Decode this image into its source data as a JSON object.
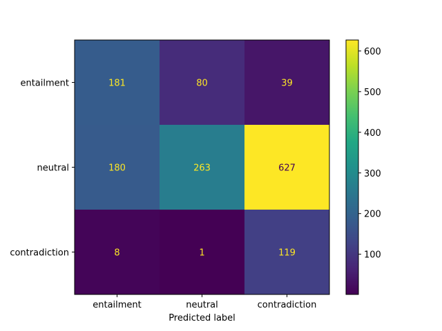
{
  "chart_data": {
    "type": "heatmap",
    "title": "",
    "xlabel": "Predicted label",
    "ylabel": "",
    "x_categories": [
      "entailment",
      "neutral",
      "contradiction"
    ],
    "y_categories": [
      "entailment",
      "neutral",
      "contradiction"
    ],
    "values": [
      [
        181,
        80,
        39
      ],
      [
        180,
        263,
        627
      ],
      [
        8,
        1,
        119
      ]
    ],
    "colormap": "viridis",
    "colorbar": {
      "range": [
        1,
        627
      ],
      "ticks": [
        100,
        200,
        300,
        400,
        500,
        600
      ],
      "tick_labels": [
        "100",
        "200",
        "300",
        "400",
        "500",
        "600"
      ]
    },
    "cell_text_colors": {
      "light_background": "#440154",
      "dark_background": "#fde725"
    }
  }
}
